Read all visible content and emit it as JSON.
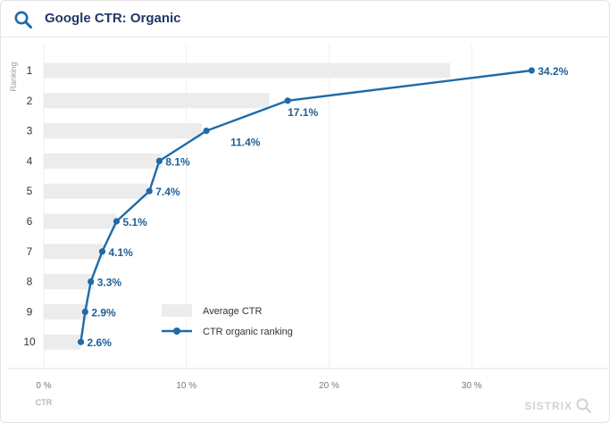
{
  "header": {
    "title": "Google CTR: Organic",
    "icon": "search-icon"
  },
  "watermark": "SISTRIX",
  "colors": {
    "line": "#1f6aa8",
    "label": "#1f5f96",
    "bar": "#ececec",
    "title": "#1f3864"
  },
  "chart_data": {
    "type": "bar",
    "orientation": "horizontal",
    "ylabel": "Ranking",
    "xlabel": "CTR",
    "categories": [
      "1",
      "2",
      "3",
      "4",
      "5",
      "6",
      "7",
      "8",
      "9",
      "10"
    ],
    "xlim": [
      0,
      36.5
    ],
    "xticks": [
      0,
      10,
      20,
      30
    ],
    "xtick_labels": [
      "0 %",
      "10 %",
      "20 %",
      "30 %"
    ],
    "series": [
      {
        "name": "Average CTR",
        "kind": "bar",
        "values": [
          28.5,
          15.8,
          11.1,
          8.3,
          7.3,
          5.1,
          4.2,
          3.5,
          3.1,
          2.6
        ]
      },
      {
        "name": "CTR organic ranking",
        "kind": "line",
        "values": [
          34.2,
          17.1,
          11.4,
          8.1,
          7.4,
          5.1,
          4.1,
          3.3,
          2.9,
          2.6
        ],
        "labels": [
          "34.2%",
          "17.1%",
          "11.4%",
          "8.1%",
          "7.4%",
          "5.1%",
          "4.1%",
          "3.3%",
          "2.9%",
          "2.6%"
        ]
      }
    ],
    "legend_position": "bottom-center"
  }
}
